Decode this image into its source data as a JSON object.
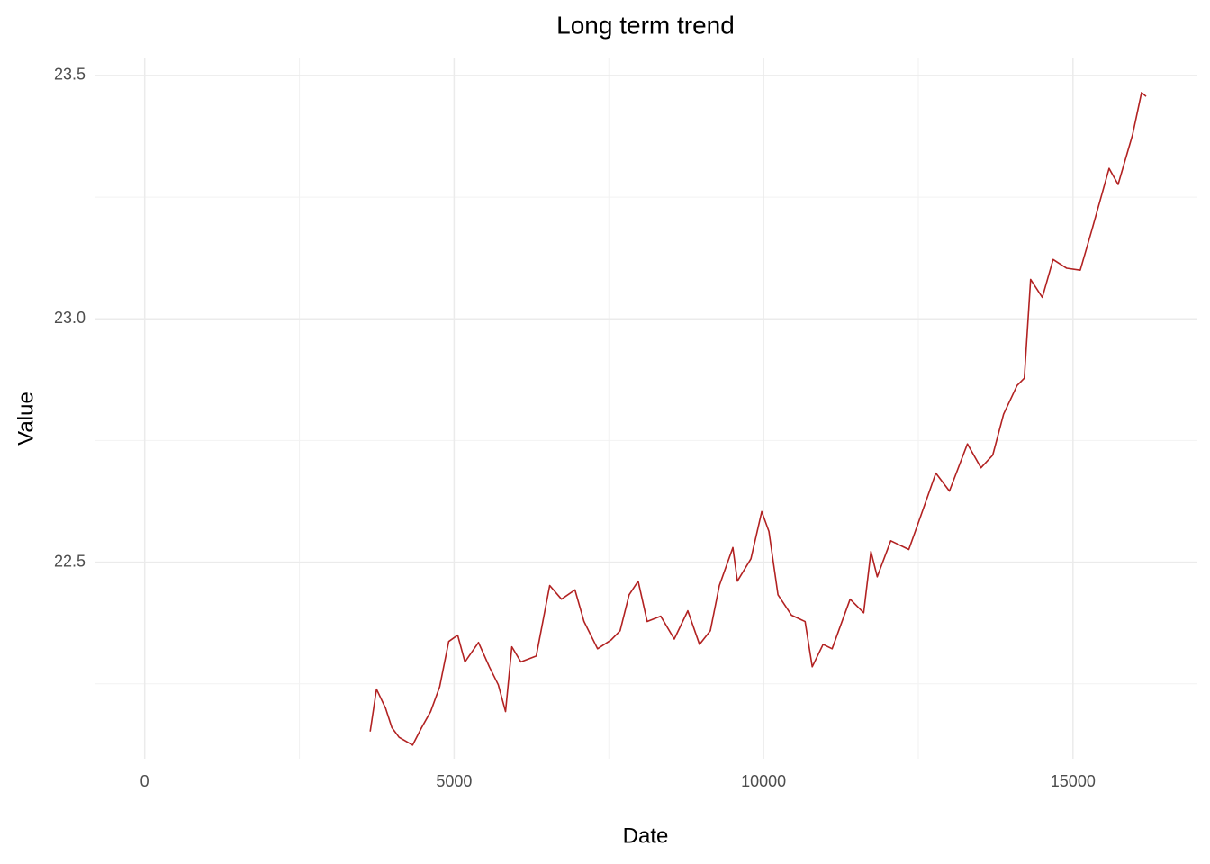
{
  "chart_data": {
    "type": "line",
    "title": "Long term trend",
    "x_label": "Date",
    "y_label": "Value",
    "xlim": [
      -810,
      17010
    ],
    "ylim": [
      22.096,
      23.535
    ],
    "xticks": [
      0,
      5000,
      10000,
      15000
    ],
    "x_minor_ticks": [
      2500,
      7500,
      12500
    ],
    "yticks": [
      {
        "value": 22.5,
        "label": "22.5"
      },
      {
        "value": 23,
        "label": "23.0"
      },
      {
        "value": 23.5,
        "label": "23.5"
      }
    ],
    "y_minor_ticks": [
      22.25,
      22.75,
      23.25
    ],
    "grid": true,
    "series": [
      {
        "color": "#b22222",
        "x": [
          3644,
          3746,
          3892,
          3994,
          4111,
          4329,
          4475,
          4621,
          4767,
          4913,
          5058,
          5175,
          5394,
          5569,
          5714,
          5831,
          5933,
          6079,
          6327,
          6545,
          6735,
          6953,
          7099,
          7318,
          7536,
          7682,
          7828,
          7974,
          8120,
          8338,
          8557,
          8776,
          8965,
          9140,
          9286,
          9504,
          9577,
          9796,
          9971,
          10087,
          10233,
          10452,
          10671,
          10787,
          10962,
          11108,
          11399,
          11618,
          11735,
          11837,
          12055,
          12347,
          12493,
          12784,
          13003,
          13294,
          13513,
          13703,
          13878,
          14096,
          14213,
          14315,
          14504,
          14679,
          14898,
          15117,
          15306,
          15583,
          15729,
          15962,
          16108,
          16181
        ],
        "values": [
          22.152,
          22.239,
          22.2,
          22.16,
          22.14,
          22.124,
          22.16,
          22.193,
          22.244,
          22.337,
          22.35,
          22.295,
          22.335,
          22.285,
          22.248,
          22.193,
          22.326,
          22.295,
          22.307,
          22.452,
          22.424,
          22.443,
          22.378,
          22.322,
          22.34,
          22.359,
          22.433,
          22.461,
          22.378,
          22.389,
          22.342,
          22.4,
          22.331,
          22.359,
          22.452,
          22.53,
          22.461,
          22.507,
          22.604,
          22.563,
          22.433,
          22.391,
          22.378,
          22.285,
          22.331,
          22.322,
          22.424,
          22.396,
          22.522,
          22.47,
          22.544,
          22.526,
          22.578,
          22.683,
          22.646,
          22.743,
          22.694,
          22.72,
          22.804,
          22.863,
          22.878,
          23.081,
          23.044,
          23.122,
          23.104,
          23.1,
          23.183,
          23.309,
          23.276,
          23.378,
          23.465,
          23.457
        ]
      }
    ]
  }
}
